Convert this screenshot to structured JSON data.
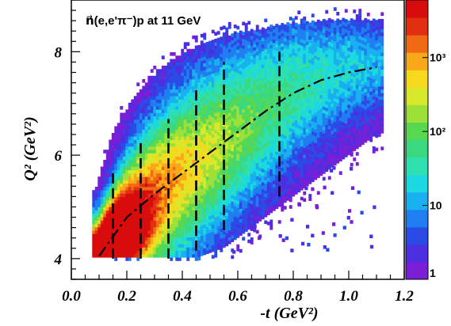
{
  "chart_data": {
    "type": "heatmap",
    "title": "n⃗(e,e'π⁻)p at 11 GeV",
    "xlabel": "-t (GeV²)",
    "ylabel": "Q² (GeV²)",
    "xlim": [
      0.0,
      1.2
    ],
    "ylim": [
      3.6,
      9.0
    ],
    "x_ticks": [
      "0.0",
      "0.2",
      "0.4",
      "0.6",
      "0.8",
      "1.0",
      "1.2"
    ],
    "y_ticks": [
      "4",
      "6",
      "8"
    ],
    "x_tick_values": [
      0.0,
      0.2,
      0.4,
      0.6,
      0.8,
      1.0,
      1.2
    ],
    "y_tick_values": [
      4,
      6,
      8
    ],
    "colorbar": {
      "scale": "log",
      "range": [
        1,
        6000
      ],
      "labels": [
        {
          "text": "1",
          "value": 1
        },
        {
          "text": "10",
          "value": 10
        },
        {
          "text": "10²",
          "value": 100
        },
        {
          "text": "10³",
          "value": 1000
        }
      ]
    },
    "bin_boundaries": [
      {
        "x": 0.15,
        "q2_min": 4.0,
        "q2_max": 5.65
      },
      {
        "x": 0.25,
        "q2_min": 4.0,
        "q2_max": 6.25
      },
      {
        "x": 0.35,
        "q2_min": 4.0,
        "q2_max": 6.7
      },
      {
        "x": 0.45,
        "q2_min": 4.15,
        "q2_max": 7.35
      },
      {
        "x": 0.55,
        "q2_min": 4.55,
        "q2_max": 7.8
      },
      {
        "x": 0.75,
        "q2_min": 5.2,
        "q2_max": 8.0
      }
    ],
    "trend_line": {
      "x": [
        0.1,
        0.2,
        0.3,
        0.4,
        0.5,
        0.6,
        0.7,
        0.8,
        0.9,
        1.0,
        1.1
      ],
      "y": [
        4.05,
        4.8,
        5.25,
        5.65,
        6.05,
        6.45,
        6.85,
        7.2,
        7.45,
        7.6,
        7.7
      ]
    },
    "density_ridge": {
      "x": [
        0.08,
        0.15,
        0.25,
        0.35,
        0.45,
        0.55,
        0.65,
        0.75,
        0.85,
        0.95,
        1.05,
        1.1
      ],
      "q2_upper": [
        5.3,
        6.5,
        7.3,
        7.8,
        8.1,
        8.3,
        8.4,
        8.5,
        8.55,
        8.6,
        8.6,
        8.6
      ],
      "q2_lower": [
        4.0,
        4.0,
        4.0,
        4.0,
        4.0,
        4.2,
        4.6,
        5.0,
        5.4,
        5.8,
        6.2,
        6.4
      ],
      "peak": {
        "x": 0.17,
        "q2": 4.4
      }
    }
  }
}
